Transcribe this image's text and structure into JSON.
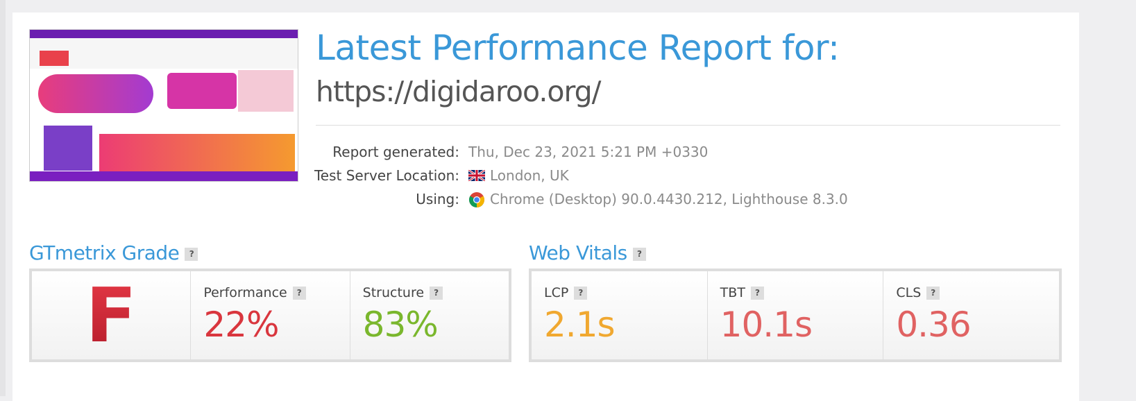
{
  "header": {
    "title": "Latest Performance Report for:",
    "url": "https://digidaroo.org/"
  },
  "report_info": [
    {
      "label": "Report generated:",
      "value": "Thu, Dec 23, 2021 5:21 PM +0330"
    },
    {
      "label": "Test Server Location:",
      "value": "London, UK"
    },
    {
      "label": "Using:",
      "value": "Chrome (Desktop) 90.0.4430.212, Lighthouse 8.3.0"
    }
  ],
  "help_icon": "?",
  "gtmetrix_grade": {
    "title": "GTmetrix Grade",
    "grade": "F",
    "metrics": [
      {
        "label": "Performance",
        "value": "22%"
      },
      {
        "label": "Structure",
        "value": "83%"
      }
    ]
  },
  "web_vitals": {
    "title": "Web Vitals",
    "metrics": [
      {
        "label": "LCP",
        "value": "2.1s"
      },
      {
        "label": "TBT",
        "value": "10.1s"
      },
      {
        "label": "CLS",
        "value": "0.36"
      }
    ]
  }
}
